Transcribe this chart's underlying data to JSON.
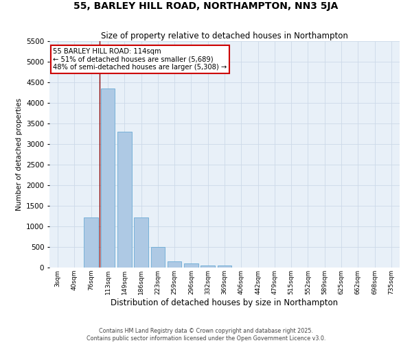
{
  "title": "55, BARLEY HILL ROAD, NORTHAMPTON, NN3 5JA",
  "subtitle": "Size of property relative to detached houses in Northampton",
  "xlabel": "Distribution of detached houses by size in Northampton",
  "ylabel": "Number of detached properties",
  "bar_labels": [
    "3sqm",
    "40sqm",
    "76sqm",
    "113sqm",
    "149sqm",
    "186sqm",
    "223sqm",
    "259sqm",
    "296sqm",
    "332sqm",
    "369sqm",
    "406sqm",
    "442sqm",
    "479sqm",
    "515sqm",
    "552sqm",
    "589sqm",
    "625sqm",
    "662sqm",
    "698sqm",
    "735sqm"
  ],
  "bar_values": [
    0,
    0,
    1220,
    4350,
    3300,
    1220,
    500,
    150,
    95,
    55,
    50,
    0,
    0,
    0,
    0,
    0,
    0,
    0,
    0,
    0,
    0
  ],
  "bar_color": "#aec9e4",
  "bar_edgecolor": "#6aaad4",
  "vline_color": "#8b0000",
  "vline_index": 3,
  "annotation_text": "55 BARLEY HILL ROAD: 114sqm\n← 51% of detached houses are smaller (5,689)\n48% of semi-detached houses are larger (5,308) →",
  "annotation_box_color": "white",
  "annotation_box_edgecolor": "#cc0000",
  "ylim": [
    0,
    5500
  ],
  "yticks": [
    0,
    500,
    1000,
    1500,
    2000,
    2500,
    3000,
    3500,
    4000,
    4500,
    5000,
    5500
  ],
  "grid_color": "#ccd9e8",
  "background_color": "#e8f0f8",
  "footer_line1": "Contains HM Land Registry data © Crown copyright and database right 2025.",
  "footer_line2": "Contains public sector information licensed under the Open Government Licence v3.0."
}
